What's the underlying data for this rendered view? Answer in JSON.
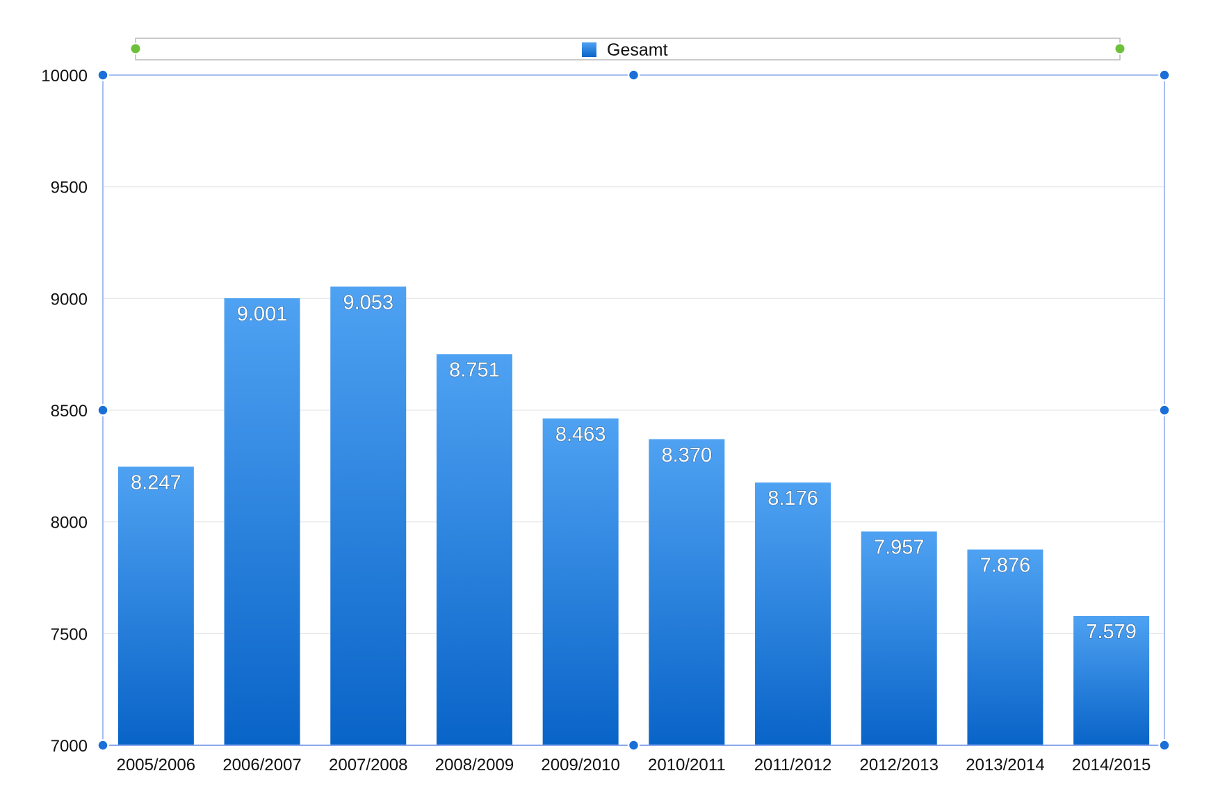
{
  "chart_data": {
    "type": "bar",
    "categories": [
      "2005/2006",
      "2006/2007",
      "2007/2008",
      "2008/2009",
      "2009/2010",
      "2010/2011",
      "2011/2012",
      "2012/2013",
      "2013/2014",
      "2014/2015"
    ],
    "series": [
      {
        "name": "Gesamt",
        "values": [
          8247,
          9001,
          9053,
          8751,
          8463,
          8370,
          8176,
          7957,
          7876,
          7579
        ],
        "labels": [
          "8.247",
          "9.001",
          "9.053",
          "8.751",
          "8.463",
          "8.370",
          "8.176",
          "7.957",
          "7.876",
          "7.579"
        ]
      }
    ],
    "ylim": [
      7000,
      10000
    ],
    "yticks": [
      "7000",
      "7500",
      "8000",
      "8500",
      "9000",
      "9500",
      "10000"
    ],
    "grid": true,
    "legend": "top",
    "colors": {
      "bar_top": "#4fa2f2",
      "bar_bottom": "#0964c8",
      "frame": "#8aa8ee",
      "handle": "#1a6fd9",
      "legend_handle": "#6cc03a",
      "grid": "#e6e6e6"
    }
  }
}
